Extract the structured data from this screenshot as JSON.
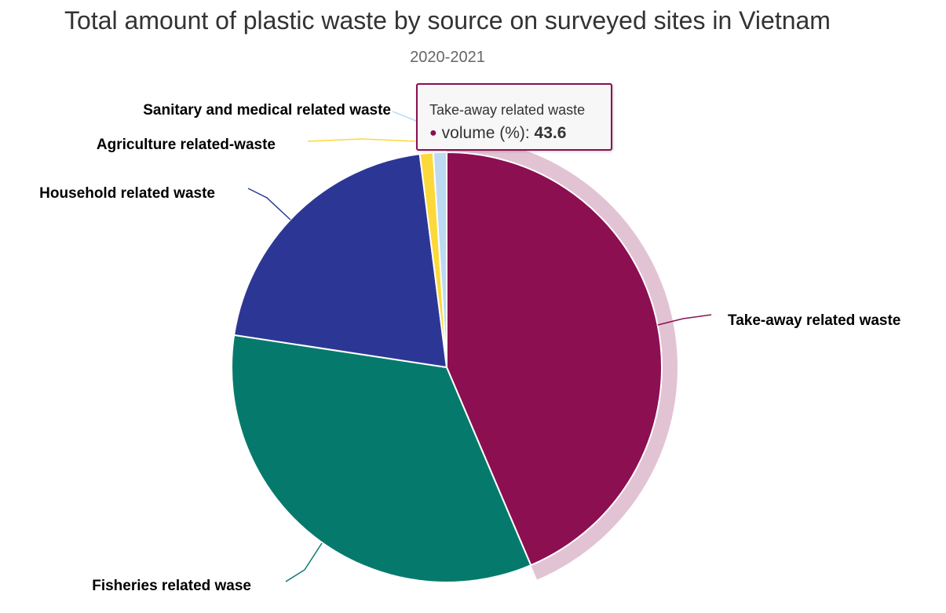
{
  "chart_data": {
    "type": "pie",
    "title": "Total amount of plastic waste by source on surveyed sites in Vietnam",
    "subtitle": "2020-2021",
    "series_name": "volume (%)",
    "slices": [
      {
        "label": "Take-away related waste",
        "value": 43.6,
        "color": "#8b0f51"
      },
      {
        "label": "Fisheries related wase",
        "value": 33.8,
        "color": "#057a6c"
      },
      {
        "label": "Household related waste",
        "value": 20.6,
        "color": "#2c3795"
      },
      {
        "label": "Agriculture related-waste",
        "value": 1.0,
        "color": "#fcd83b"
      },
      {
        "label": "Sanitary and medical related waste",
        "value": 1.0,
        "color": "#bcdaf2"
      }
    ]
  },
  "tooltip": {
    "header": "Take-away related waste",
    "series": "volume (%)",
    "value": "43.6"
  }
}
